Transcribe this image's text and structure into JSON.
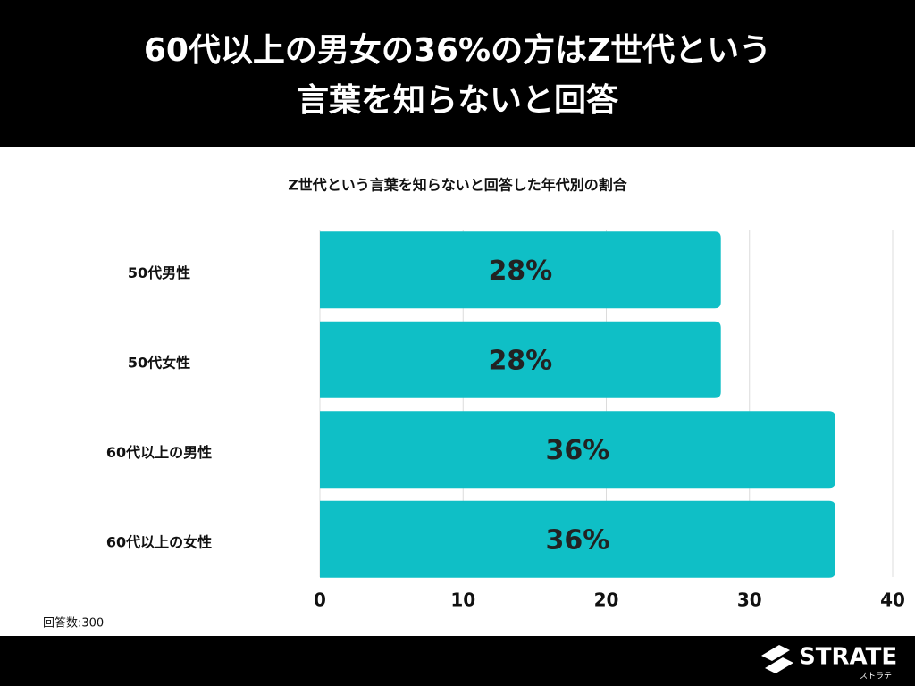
{
  "chart_data": {
    "type": "bar",
    "orientation": "horizontal",
    "title": [
      "60代以上の男女の36%の方はZ世代という",
      "言葉を知らないと回答"
    ],
    "subtitle": "Z世代という言葉を知らないと回答した年代別の割合",
    "categories": [
      "50代男性",
      "50代女性",
      "60代以上の男性",
      "60代以上の女性"
    ],
    "values": [
      28,
      28,
      36,
      36
    ],
    "value_labels": [
      "28%",
      "28%",
      "36%",
      "36%"
    ],
    "color": "#0fbfc6",
    "xlim": [
      0,
      40
    ],
    "xticks": [
      0,
      10,
      20,
      30,
      40
    ],
    "grid": true
  },
  "note": "回答数:300",
  "brand": {
    "name": "STRATE",
    "sub": "ストラテ"
  }
}
